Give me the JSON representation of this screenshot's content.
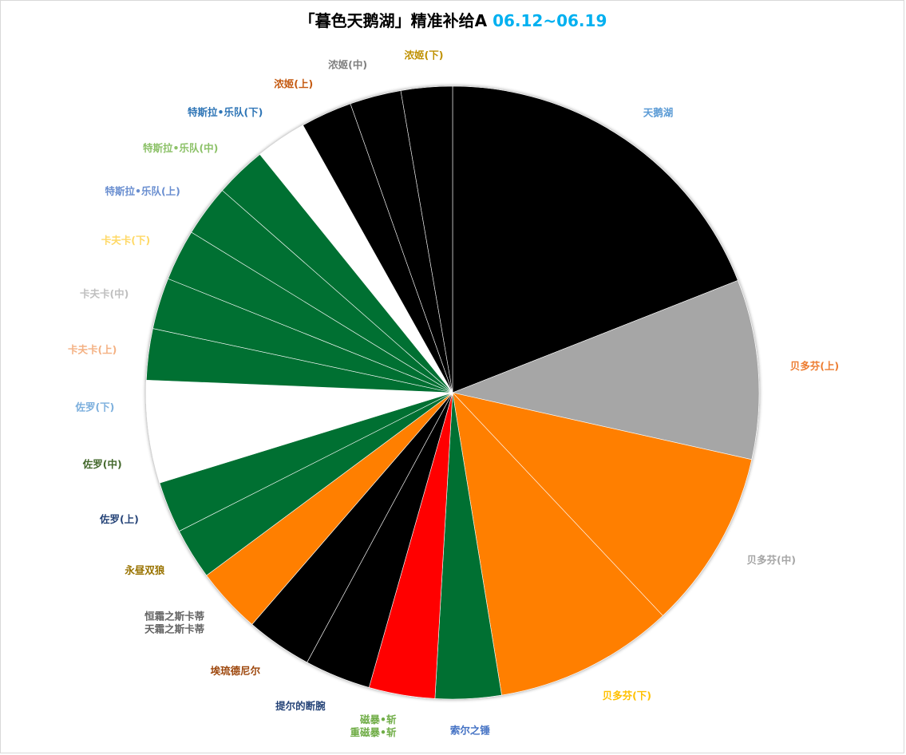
{
  "chart_data": {
    "type": "pie",
    "title": "「暮色天鹅湖」精准补给A",
    "date_range": "06.12~06.19",
    "slices": [
      {
        "label": "天鹅湖",
        "lines": [
          "天鹅湖"
        ],
        "value": 19.7,
        "color": "#000000",
        "label_color": "#5b9bd5"
      },
      {
        "label": "贝多芬(上)",
        "lines": [
          "贝多芬(上)"
        ],
        "value": 9.8,
        "color": "#a6a6a6",
        "label_color": "#ed7d31"
      },
      {
        "label": "贝多芬(中)",
        "lines": [
          "贝多芬(中)"
        ],
        "value": 9.8,
        "color": "#ff7f00",
        "label_color": "#a5a5a5"
      },
      {
        "label": "贝多芬(下)",
        "lines": [
          "贝多芬(下)"
        ],
        "value": 9.8,
        "color": "#ff7f00",
        "label_color": "#ffc000"
      },
      {
        "label": "索尔之锤",
        "lines": [
          "索尔之锤"
        ],
        "value": 3.6,
        "color": "#007033",
        "label_color": "#4472c4"
      },
      {
        "label": "磁暴•斩 / 重磁暴•斩",
        "lines": [
          "磁暴•斩",
          "重磁暴•斩"
        ],
        "value": 3.6,
        "color": "#ff0000",
        "label_color": "#70ad47"
      },
      {
        "label": "提尔的断腕",
        "lines": [
          "提尔的断腕"
        ],
        "value": 3.6,
        "color": "#000000",
        "label_color": "#264478"
      },
      {
        "label": "埃琉德尼尔",
        "lines": [
          "埃琉德尼尔"
        ],
        "value": 3.6,
        "color": "#000000",
        "label_color": "#9e480e"
      },
      {
        "label": "恒霜之斯卡蒂 / 天霜之斯卡蒂",
        "lines": [
          "恒霜之斯卡蒂",
          "天霜之斯卡蒂"
        ],
        "value": 3.6,
        "color": "#ff7f00",
        "label_color": "#636363"
      },
      {
        "label": "永昼双狼",
        "lines": [
          "永昼双狼"
        ],
        "value": 2.8,
        "color": "#007033",
        "label_color": "#997300"
      },
      {
        "label": "佐罗(上)",
        "lines": [
          "佐罗(上)"
        ],
        "value": 2.8,
        "color": "#007033",
        "label_color": "#264478"
      },
      {
        "label": "佐罗(中)",
        "lines": [
          "佐罗(中)"
        ],
        "value": 2.8,
        "color": "#ffffff",
        "label_color": "#43682b"
      },
      {
        "label": "佐罗(下)",
        "lines": [
          "佐罗(下)"
        ],
        "value": 2.8,
        "color": "#ffffff",
        "label_color": "#7cafdd"
      },
      {
        "label": "卡夫卡(上)",
        "lines": [
          "卡夫卡(上)"
        ],
        "value": 2.8,
        "color": "#007033",
        "label_color": "#f4b183"
      },
      {
        "label": "卡夫卡(中)",
        "lines": [
          "卡夫卡(中)"
        ],
        "value": 2.8,
        "color": "#007033",
        "label_color": "#bfbfbf"
      },
      {
        "label": "卡夫卡(下)",
        "lines": [
          "卡夫卡(下)"
        ],
        "value": 2.8,
        "color": "#007033",
        "label_color": "#ffd966"
      },
      {
        "label": "特斯拉•乐队(上)",
        "lines": [
          "特斯拉•乐队(上)"
        ],
        "value": 2.8,
        "color": "#007033",
        "label_color": "#698ed0"
      },
      {
        "label": "特斯拉•乐队(中)",
        "lines": [
          "特斯拉•乐队(中)"
        ],
        "value": 2.8,
        "color": "#007033",
        "label_color": "#8cc168"
      },
      {
        "label": "特斯拉•乐队(下)",
        "lines": [
          "特斯拉•乐队(下)"
        ],
        "value": 2.8,
        "color": "#ffffff",
        "label_color": "#2e75b6"
      },
      {
        "label": "浓姬(上)",
        "lines": [
          "浓姬(上)"
        ],
        "value": 2.8,
        "color": "#000000",
        "label_color": "#c55a11"
      },
      {
        "label": "浓姬(中)",
        "lines": [
          "浓姬(中)"
        ],
        "value": 2.8,
        "color": "#000000",
        "label_color": "#7f7f7f"
      },
      {
        "label": "浓姬(下)",
        "lines": [
          "浓姬(下)"
        ],
        "value": 2.8,
        "color": "#000000",
        "label_color": "#bf9000"
      }
    ],
    "legend": "none",
    "data_labels": "category names outside slices"
  }
}
